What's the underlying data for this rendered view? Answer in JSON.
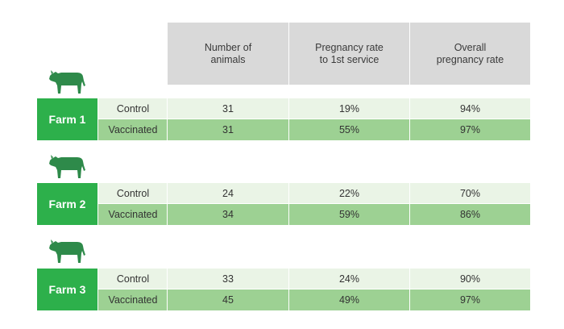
{
  "header": {
    "columns": [
      {
        "label": "Number of\nanimals"
      },
      {
        "label": "Pregnancy rate\nto 1st service"
      },
      {
        "label": "Overall\npregnancy rate"
      }
    ]
  },
  "farms": [
    {
      "name": "Farm 1",
      "icon": "cow-icon",
      "rows": [
        {
          "group": "Control",
          "animals": "31",
          "first_service": "19%",
          "overall": "94%"
        },
        {
          "group": "Vaccinated",
          "animals": "31",
          "first_service": "55%",
          "overall": "97%"
        }
      ]
    },
    {
      "name": "Farm 2",
      "icon": "cow-icon",
      "rows": [
        {
          "group": "Control",
          "animals": "24",
          "first_service": "22%",
          "overall": "70%"
        },
        {
          "group": "Vaccinated",
          "animals": "34",
          "first_service": "59%",
          "overall": "86%"
        }
      ]
    },
    {
      "name": "Farm 3",
      "icon": "cow-icon",
      "rows": [
        {
          "group": "Control",
          "animals": "33",
          "first_service": "24%",
          "overall": "90%"
        },
        {
          "group": "Vaccinated",
          "animals": "45",
          "first_service": "49%",
          "overall": "97%"
        }
      ]
    }
  ],
  "colors": {
    "farm_green": "#2db04b",
    "control_row": "#eaf4e6",
    "vaccinated_row": "#9dd193",
    "header_gray": "#d9d9d9",
    "cow_green": "#2e8a4a"
  }
}
